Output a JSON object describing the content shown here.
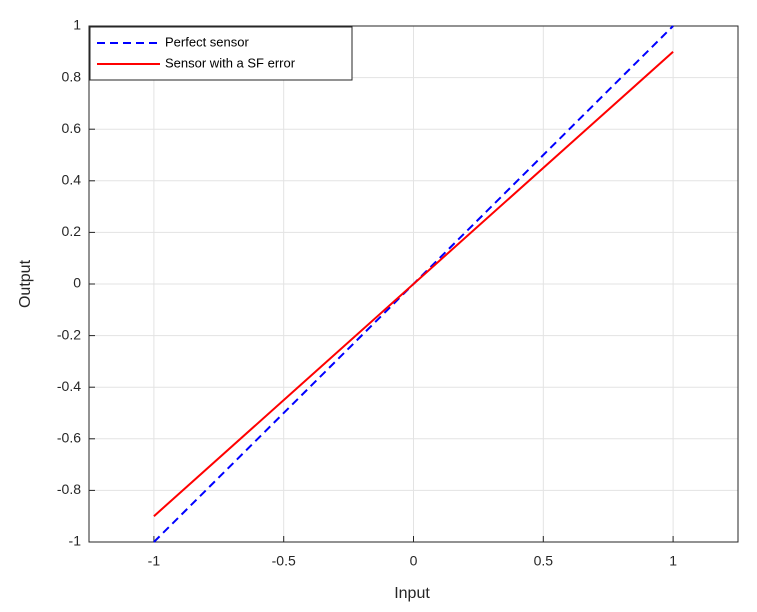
{
  "chart_data": {
    "type": "line",
    "x_label": "Input",
    "y_label": "Output",
    "x": [
      -1,
      1
    ],
    "series": [
      {
        "name": "Perfect sensor",
        "color": "#0000ff",
        "dash": true,
        "values": [
          -1,
          1
        ]
      },
      {
        "name": "Sensor with a SF error",
        "color": "#ff0000",
        "dash": false,
        "values": [
          -0.9,
          0.9
        ]
      }
    ],
    "xlim": [
      -1.25,
      1.25
    ],
    "xticks": [
      -1,
      -0.5,
      0,
      0.5,
      1
    ],
    "ylim": [
      -1,
      1
    ],
    "yticks": [
      -1,
      -0.8,
      -0.6,
      -0.4,
      -0.2,
      0,
      0.2,
      0.4,
      0.6,
      0.8,
      1
    ],
    "grid": true,
    "legend": "top-left"
  }
}
